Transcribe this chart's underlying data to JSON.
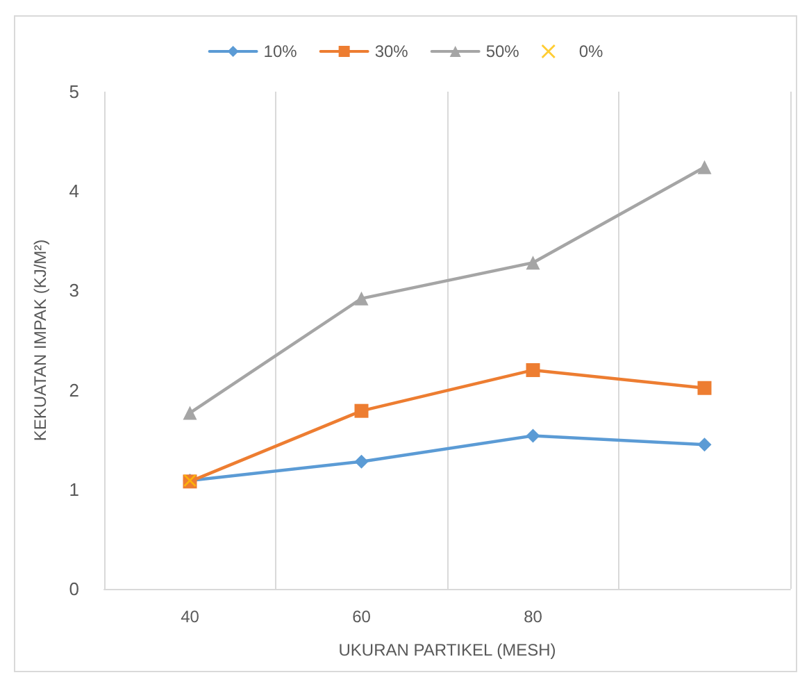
{
  "chart_data": {
    "type": "line",
    "xlabel": "UKURAN PARTIKEL (MESH)",
    "ylabel": "KEKUATAN IMPAK (KJ/M²)",
    "categories": [
      "40",
      "60",
      "80",
      null
    ],
    "series": [
      {
        "name": "10%",
        "color": "#5b9bd5",
        "marker": "diamond",
        "values": [
          1.09,
          1.28,
          1.54,
          1.45
        ]
      },
      {
        "name": "30%",
        "color": "#ed7d31",
        "marker": "square",
        "values": [
          1.08,
          1.79,
          2.2,
          2.02
        ]
      },
      {
        "name": "50%",
        "color": "#a5a5a5",
        "marker": "triangle",
        "values": [
          1.77,
          2.92,
          3.28,
          4.24
        ]
      },
      {
        "name": "0%",
        "color": "#ffc000",
        "type": "scatter",
        "marker": "cross",
        "values": [
          1.09,
          null,
          null,
          null
        ]
      }
    ],
    "ylim": [
      0,
      5
    ],
    "yticks": [
      0,
      1,
      2,
      3,
      4,
      5
    ],
    "grid": "x",
    "legend": "top"
  }
}
